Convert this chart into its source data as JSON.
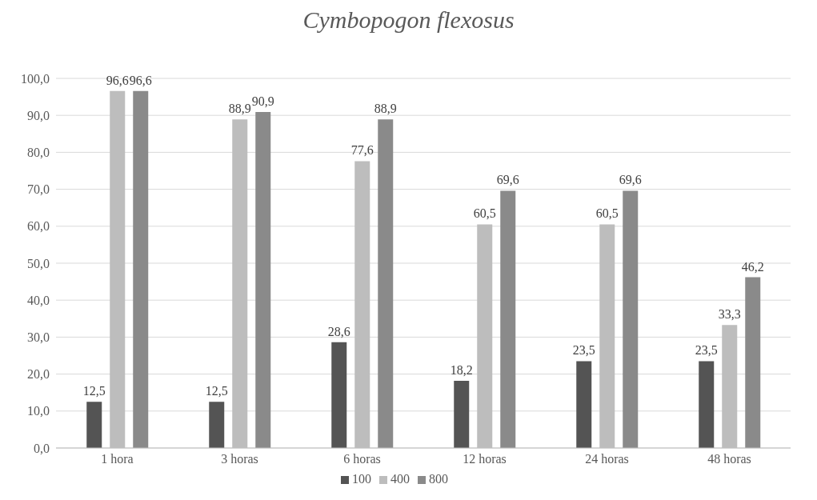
{
  "chart_data": {
    "type": "bar",
    "title": "Cymbopogon flexosus",
    "categories": [
      "1 hora",
      "3 horas",
      "6 horas",
      "12 horas",
      "24 horas",
      "48 horas"
    ],
    "series": [
      {
        "name": "100",
        "color": "#545454",
        "values": [
          12.5,
          12.5,
          28.6,
          18.2,
          23.5,
          23.5
        ],
        "value_labels": [
          "12,5",
          "12,5",
          "28,6",
          "18,2",
          "23,5",
          "23,5"
        ]
      },
      {
        "name": "400",
        "color": "#bdbdbd",
        "values": [
          96.6,
          88.9,
          77.6,
          60.5,
          60.5,
          33.3
        ],
        "value_labels": [
          "96,6",
          "88,9",
          "77,6",
          "60,5",
          "60,5",
          "33,3"
        ]
      },
      {
        "name": "800",
        "color": "#8a8a8a",
        "values": [
          96.6,
          90.9,
          88.9,
          69.6,
          69.6,
          46.2
        ],
        "value_labels": [
          "96,6",
          "90,9",
          "88,9",
          "69,6",
          "69,6",
          "46,2"
        ]
      }
    ],
    "ylim": [
      0,
      100
    ],
    "yticks": [
      {
        "value": 0,
        "label": "0,0"
      },
      {
        "value": 10,
        "label": "10,0"
      },
      {
        "value": 20,
        "label": "20,0"
      },
      {
        "value": 30,
        "label": "30,0"
      },
      {
        "value": 40,
        "label": "40,0"
      },
      {
        "value": 50,
        "label": "50,0"
      },
      {
        "value": 60,
        "label": "60,0"
      },
      {
        "value": 70,
        "label": "70,0"
      },
      {
        "value": 80,
        "label": "80,0"
      },
      {
        "value": 90,
        "label": "90,0"
      },
      {
        "value": 100,
        "label": "100,0"
      }
    ],
    "grid": "y",
    "legend": "bottom"
  }
}
